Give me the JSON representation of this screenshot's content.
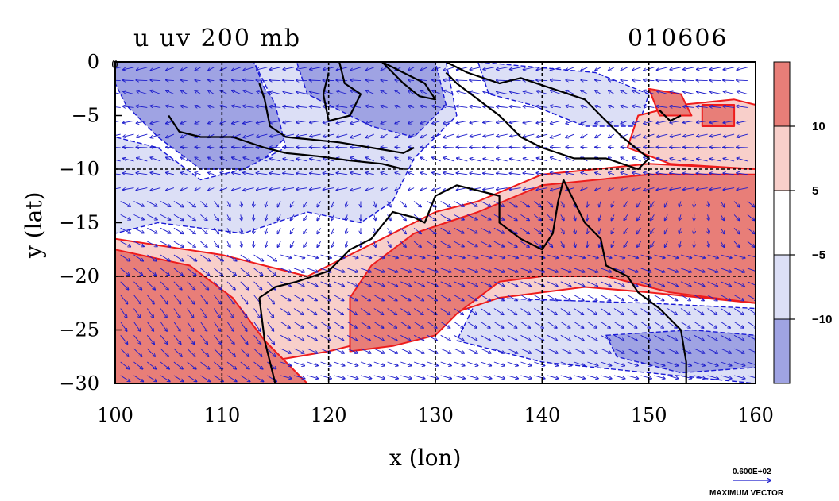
{
  "chart_data": {
    "type": "contour_vector_map",
    "title": "u uv 200 mb",
    "date_label": "010606",
    "xlabel": "x (lon)",
    "ylabel": "y (lat)",
    "xlim": [
      100,
      160
    ],
    "ylim": [
      -30,
      0
    ],
    "x_ticks": [
      100,
      110,
      120,
      130,
      140,
      150,
      160
    ],
    "x_tick_labels": [
      "100",
      "110",
      "120",
      "130",
      "140",
      "150",
      "160"
    ],
    "y_ticks": [
      0,
      -5,
      -10,
      -15,
      -20,
      -25,
      -30
    ],
    "y_tick_labels": [
      "0",
      "−5",
      "−10",
      "−15",
      "−20",
      "−25",
      "−30"
    ],
    "grid_lines_x": [
      110,
      120,
      130,
      140,
      150
    ],
    "grid_lines_y": [
      -10,
      -20
    ],
    "zero_label": "0",
    "colorbar": {
      "levels": [
        -10,
        -5,
        5,
        10
      ],
      "level_labels": [
        "−10",
        "−5",
        "5",
        "10"
      ],
      "colors": [
        "#e8998f",
        "#f6cdc7",
        "#ffffff",
        "#dde0f7",
        "#9c9ee0"
      ]
    },
    "fill_colors": {
      "strong_positive": "#e87e78",
      "weak_positive": "#f8cfca",
      "weak_negative": "#dcdff6",
      "strong_negative": "#9fa3e3",
      "contour_positive": "#ee1c1c",
      "contour_negative": "#1919d6",
      "vectors": "#1c1ccc",
      "coast": "#000000"
    },
    "regions": [
      {
        "level": "strong_negative",
        "points": [
          [
            100,
            0
          ],
          [
            113,
            0
          ],
          [
            114,
            -2.5
          ],
          [
            117,
            -6
          ],
          [
            113,
            -10
          ],
          [
            108,
            -10
          ],
          [
            104,
            -7
          ],
          [
            101,
            -4
          ],
          [
            100,
            -2
          ]
        ]
      },
      {
        "level": "weak_negative",
        "points": [
          [
            113,
            0
          ],
          [
            131,
            0
          ],
          [
            132,
            -5
          ],
          [
            128,
            -9
          ],
          [
            126,
            -13
          ],
          [
            123,
            -15
          ],
          [
            118,
            -14
          ],
          [
            112,
            -16
          ],
          [
            104,
            -15
          ],
          [
            100,
            -16
          ],
          [
            100,
            -7
          ],
          [
            104,
            -8
          ],
          [
            108,
            -11
          ],
          [
            112,
            -10
          ],
          [
            116,
            -8
          ],
          [
            115,
            -4
          ]
        ]
      },
      {
        "level": "strong_negative",
        "points": [
          [
            117,
            0
          ],
          [
            130,
            0
          ],
          [
            131,
            -4
          ],
          [
            128,
            -7
          ],
          [
            124,
            -6
          ],
          [
            120,
            -4
          ],
          [
            118,
            -3
          ]
        ]
      },
      {
        "level": "weak_negative",
        "points": [
          [
            134,
            0
          ],
          [
            145,
            -1
          ],
          [
            150,
            -3
          ],
          [
            149,
            -6
          ],
          [
            144,
            -6
          ],
          [
            139,
            -4
          ],
          [
            135,
            -3
          ]
        ]
      },
      {
        "level": "weak_negative",
        "points": [
          [
            134,
            -22
          ],
          [
            150,
            -22.5
          ],
          [
            160,
            -23
          ],
          [
            160,
            -30
          ],
          [
            140,
            -28
          ],
          [
            132,
            -26
          ]
        ]
      },
      {
        "level": "strong_negative",
        "points": [
          [
            146,
            -25.5
          ],
          [
            154,
            -25
          ],
          [
            160,
            -25.5
          ],
          [
            160,
            -28.5
          ],
          [
            153,
            -29
          ],
          [
            147,
            -27.5
          ]
        ]
      },
      {
        "level": "weak_positive",
        "points": [
          [
            100,
            -16.5
          ],
          [
            110,
            -18
          ],
          [
            118,
            -20
          ],
          [
            124,
            -17
          ],
          [
            130,
            -14
          ],
          [
            134,
            -13
          ],
          [
            140,
            -10.5
          ],
          [
            150,
            -9.5
          ],
          [
            160,
            -10
          ],
          [
            160,
            -22.5
          ],
          [
            150,
            -21.5
          ],
          [
            144,
            -21
          ],
          [
            136,
            -22
          ],
          [
            130,
            -24
          ],
          [
            126,
            -25.5
          ],
          [
            120,
            -27
          ],
          [
            114,
            -28
          ],
          [
            109,
            -30
          ],
          [
            100,
            -30
          ]
        ]
      },
      {
        "level": "weak_positive",
        "points": [
          [
            149,
            -5
          ],
          [
            153,
            -4
          ],
          [
            158,
            -3.5
          ],
          [
            160,
            -4
          ],
          [
            160,
            -10
          ],
          [
            152,
            -9.5
          ],
          [
            148,
            -8
          ]
        ]
      },
      {
        "level": "strong_positive",
        "points": [
          [
            100,
            -17.5
          ],
          [
            107,
            -19
          ],
          [
            111,
            -22
          ],
          [
            114,
            -26
          ],
          [
            116,
            -28
          ],
          [
            118,
            -30
          ],
          [
            100,
            -30
          ]
        ]
      },
      {
        "level": "strong_positive",
        "points": [
          [
            122,
            -22
          ],
          [
            124,
            -19
          ],
          [
            128,
            -16
          ],
          [
            134,
            -14
          ],
          [
            140,
            -11.5
          ],
          [
            150,
            -10.5
          ],
          [
            160,
            -10.5
          ],
          [
            160,
            -22.5
          ],
          [
            152,
            -21.5
          ],
          [
            146,
            -20
          ],
          [
            140,
            -20
          ],
          [
            136,
            -20.5
          ],
          [
            132,
            -23.5
          ],
          [
            130,
            -25.5
          ],
          [
            126,
            -26.5
          ],
          [
            122,
            -27
          ]
        ]
      },
      {
        "level": "strong_positive",
        "points": [
          [
            150,
            -2.5
          ],
          [
            153,
            -3
          ],
          [
            154,
            -5
          ],
          [
            151,
            -5
          ]
        ]
      },
      {
        "level": "strong_positive",
        "points": [
          [
            155,
            -4
          ],
          [
            158,
            -4
          ],
          [
            158,
            -6
          ],
          [
            155,
            -6
          ]
        ]
      }
    ],
    "coastlines": [
      [
        [
          113.5,
          -2
        ],
        [
          114,
          -3.5
        ],
        [
          114.5,
          -6
        ],
        [
          116,
          -7
        ],
        [
          118,
          -7.2
        ],
        [
          121,
          -7.5
        ],
        [
          124,
          -8
        ],
        [
          127,
          -8.5
        ],
        [
          128,
          -8
        ]
      ],
      [
        [
          105,
          -5
        ],
        [
          106,
          -6.5
        ],
        [
          108,
          -7
        ],
        [
          111,
          -7
        ],
        [
          114,
          -8
        ],
        [
          116,
          -8.5
        ]
      ],
      [
        [
          116,
          -8.5
        ],
        [
          119,
          -8.8
        ],
        [
          122,
          -9.2
        ],
        [
          125,
          -9.5
        ],
        [
          127,
          -10
        ]
      ],
      [
        [
          121,
          0
        ],
        [
          121.5,
          -2
        ],
        [
          123,
          -3
        ],
        [
          122,
          -5
        ],
        [
          120,
          -5.5
        ],
        [
          119.5,
          -3
        ],
        [
          120,
          -1
        ]
      ],
      [
        [
          125,
          0
        ],
        [
          127,
          -2
        ],
        [
          128.5,
          -3.2
        ],
        [
          130,
          -3.5
        ],
        [
          129,
          -2
        ],
        [
          127,
          -1
        ],
        [
          125,
          0
        ]
      ],
      [
        [
          131,
          0
        ],
        [
          133,
          -1
        ],
        [
          136,
          -2
        ],
        [
          138,
          -1.5
        ],
        [
          141,
          -2.5
        ],
        [
          144,
          -3.5
        ],
        [
          146,
          -5.5
        ],
        [
          147.5,
          -7
        ],
        [
          150,
          -9
        ],
        [
          149,
          -10
        ],
        [
          146,
          -9
        ],
        [
          143,
          -9
        ],
        [
          140,
          -8
        ],
        [
          138,
          -7
        ],
        [
          136,
          -5
        ],
        [
          134,
          -3.5
        ],
        [
          132,
          -2
        ],
        [
          131,
          -1
        ]
      ],
      [
        [
          151,
          -4.5
        ],
        [
          152,
          -5.5
        ],
        [
          153,
          -5
        ]
      ],
      [
        [
          113.5,
          -22
        ],
        [
          114,
          -26
        ],
        [
          115,
          -30
        ]
      ],
      [
        [
          113.5,
          -22
        ],
        [
          115,
          -21
        ],
        [
          117,
          -20.5
        ],
        [
          120,
          -19.5
        ],
        [
          122,
          -17.5
        ],
        [
          124,
          -16.5
        ],
        [
          126,
          -14
        ],
        [
          128,
          -14.5
        ],
        [
          129,
          -15
        ],
        [
          130,
          -12.5
        ],
        [
          132,
          -11.5
        ],
        [
          134,
          -12
        ],
        [
          136,
          -12.5
        ],
        [
          136,
          -15
        ],
        [
          138,
          -16.5
        ],
        [
          140,
          -17.5
        ],
        [
          141,
          -16
        ],
        [
          141.5,
          -13
        ],
        [
          142,
          -11
        ],
        [
          143,
          -13
        ],
        [
          144,
          -15
        ],
        [
          145.5,
          -16.5
        ],
        [
          146,
          -19
        ],
        [
          148,
          -20
        ],
        [
          149,
          -21.5
        ],
        [
          151,
          -23
        ],
        [
          153,
          -25
        ],
        [
          153.5,
          -28
        ],
        [
          153.5,
          -30
        ]
      ]
    ],
    "vector_reference": {
      "value_label": "0.600E+02",
      "caption": "MAXIMUM VECTOR"
    }
  }
}
